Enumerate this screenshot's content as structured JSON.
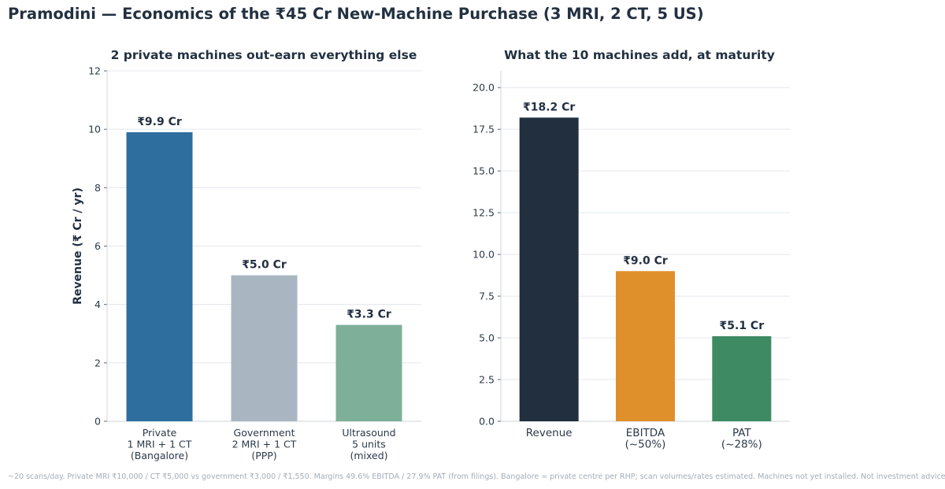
{
  "header": {
    "title": "Pramodini — Economics of the ₹45 Cr New-Machine Purchase (3 MRI, 2 CT, 5 US)"
  },
  "footnote": "~20 scans/day. Private MRI ₹10,000 / CT ₹5,000 vs government ₹3,000 / ₹1,550. Margins 49.6% EBITDA / 27.9% PAT (from filings). Bangalore = private centre per RHP; scan volumes/rates estimated. Machines not yet installed. Not investment advice.",
  "chart_data": [
    {
      "type": "bar",
      "title": "2 private machines out-earn everything else",
      "ylabel": "Revenue  (₹ Cr / yr)",
      "xlabel": "",
      "ylim": [
        0,
        12
      ],
      "yticks": [
        "0",
        "2",
        "4",
        "6",
        "8",
        "10",
        "12"
      ],
      "yticks_values": [
        0,
        2,
        4,
        6,
        8,
        10,
        12
      ],
      "grid": true,
      "categories": [
        [
          "Private",
          "1 MRI + 1 CT",
          "(Bangalore)"
        ],
        [
          "Government",
          "2 MRI + 1 CT",
          "(PPP)"
        ],
        [
          "Ultrasound",
          "5 units",
          "(mixed)"
        ]
      ],
      "values": [
        9.9,
        5.0,
        3.3
      ],
      "data_labels": [
        "₹9.9 Cr",
        "₹5.0 Cr",
        "₹3.3 Cr"
      ],
      "colors": [
        "#2e6e9e",
        "#a9b6c2",
        "#7eaf98"
      ]
    },
    {
      "type": "bar",
      "title": "What the 10 machines add, at maturity",
      "ylabel": "",
      "xlabel": "",
      "ylim": [
        0,
        21
      ],
      "yticks": [
        "0.0",
        "2.5",
        "5.0",
        "7.5",
        "10.0",
        "12.5",
        "15.0",
        "17.5",
        "20.0"
      ],
      "yticks_values": [
        0,
        2.5,
        5,
        7.5,
        10,
        12.5,
        15,
        17.5,
        20
      ],
      "grid": true,
      "categories": [
        [
          "Revenue"
        ],
        [
          "EBITDA",
          "(~50%)"
        ],
        [
          "PAT",
          "(~28%)"
        ]
      ],
      "values": [
        18.2,
        9.0,
        5.1
      ],
      "data_labels": [
        "₹18.2 Cr",
        "₹9.0 Cr",
        "₹5.1 Cr"
      ],
      "colors": [
        "#222f3e",
        "#e0902b",
        "#3e8a62"
      ]
    }
  ]
}
